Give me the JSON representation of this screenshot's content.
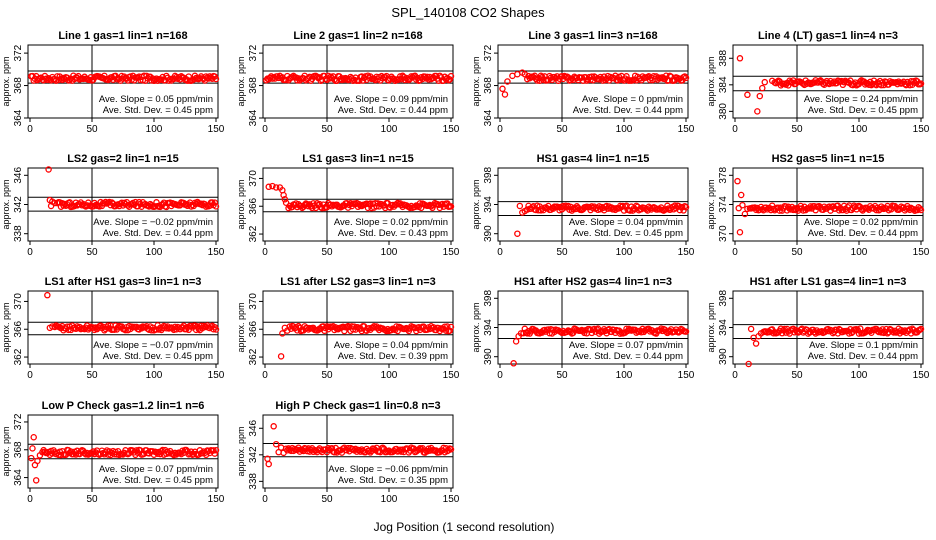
{
  "figure": {
    "title": "SPL_140108  CO2 Shapes",
    "xlabel": "Jog Position (1 second resolution)"
  },
  "colors": {
    "points": "#ff0000",
    "axes": "#000000"
  },
  "chart_data": [
    {
      "type": "scatter",
      "title": "Line 1 gas=1 lin=1 n=168",
      "ylabel": "approx. ppm",
      "xlim": [
        0,
        150
      ],
      "ylim": [
        364,
        373
      ],
      "yticks": [
        364,
        368,
        372
      ],
      "xticks": [
        0,
        50,
        100,
        150
      ],
      "hlines": [
        369.8,
        368.3
      ],
      "vline": 50,
      "baseline": 368.9,
      "slope": "Ave. Slope = 0.05 ppm/min",
      "stdev": "Ave. Std. Dev. = 0.45 ppm",
      "outliers": []
    },
    {
      "type": "scatter",
      "title": "Line 2 gas=1 lin=2 n=168",
      "ylabel": "approx. ppm",
      "xlim": [
        0,
        150
      ],
      "ylim": [
        364,
        373
      ],
      "yticks": [
        364,
        368,
        372
      ],
      "xticks": [
        0,
        50,
        100,
        150
      ],
      "hlines": [
        369.8,
        368.3
      ],
      "vline": 50,
      "baseline": 368.9,
      "slope": "Ave. Slope = 0.09 ppm/min",
      "stdev": "Ave. Std. Dev. = 0.44 ppm",
      "outliers": []
    },
    {
      "type": "scatter",
      "title": "Line 3 gas=1 lin=3 n=168",
      "ylabel": "approx. ppm",
      "xlim": [
        0,
        150
      ],
      "ylim": [
        364,
        373
      ],
      "yticks": [
        364,
        368,
        372
      ],
      "xticks": [
        0,
        50,
        100,
        150
      ],
      "hlines": [
        369.8,
        368.3
      ],
      "vline": 50,
      "baseline": 368.9,
      "slope": "Ave. Slope = 0  ppm/min",
      "stdev": "Ave. Std. Dev. = 0.44 ppm",
      "outliers": [
        [
          2,
          367.6
        ],
        [
          4,
          366.9
        ],
        [
          6,
          368.5
        ],
        [
          10,
          369.2
        ],
        [
          14,
          369.4
        ],
        [
          18,
          369.6
        ],
        [
          20,
          369.4
        ]
      ]
    },
    {
      "type": "scatter",
      "title": "Line 4 (LT) gas=1 lin=4 n=3",
      "ylabel": "approx. ppm",
      "xlim": [
        0,
        150
      ],
      "ylim": [
        379,
        390
      ],
      "yticks": [
        380,
        384,
        388
      ],
      "xticks": [
        0,
        50,
        100,
        150
      ],
      "hlines": [
        385.3,
        383.1
      ],
      "vline": 50,
      "baseline": 384.3,
      "slope": "Ave. Slope = 0.24 ppm/min",
      "stdev": "Ave. Std. Dev. = 0.45 ppm",
      "outliers": [
        [
          4,
          388
        ],
        [
          10,
          382.5
        ],
        [
          18,
          380
        ],
        [
          20,
          382.3
        ],
        [
          22,
          383.5
        ],
        [
          24,
          384.4
        ],
        [
          30,
          384.6
        ]
      ]
    },
    {
      "type": "scatter",
      "title": "LS2 gas=2 lin=1 n=15",
      "ylabel": "approx. ppm",
      "xlim": [
        0,
        150
      ],
      "ylim": [
        337,
        347
      ],
      "yticks": [
        338,
        342,
        346
      ],
      "xticks": [
        0,
        50,
        100,
        150
      ],
      "hlines": [
        343.0,
        341.1
      ],
      "vline": 50,
      "baseline": 342.0,
      "slope": "Ave. Slope = −0.02 ppm/min",
      "stdev": "Ave. Std. Dev. = 0.44 ppm",
      "outliers": [
        [
          15,
          346.8
        ],
        [
          16,
          342.6
        ],
        [
          17,
          341.8
        ],
        [
          18,
          342.4
        ],
        [
          20,
          342.2
        ]
      ]
    },
    {
      "type": "scatter",
      "title": "LS1 gas=3 lin=1 n=15",
      "ylabel": "approx. ppm",
      "xlim": [
        0,
        150
      ],
      "ylim": [
        361,
        371.5
      ],
      "yticks": [
        362,
        366,
        370
      ],
      "xticks": [
        0,
        50,
        100,
        150
      ],
      "hlines": [
        367.0,
        365.2
      ],
      "vline": 50,
      "baseline": 366.1,
      "slope": "Ave. Slope = 0.02 ppm/min",
      "stdev": "Ave. Std. Dev. = 0.43 ppm",
      "outliers": [
        [
          3,
          368.8
        ],
        [
          6,
          368.9
        ],
        [
          9,
          368.7
        ],
        [
          12,
          368.7
        ],
        [
          14,
          368.3
        ],
        [
          15,
          367.6
        ],
        [
          16,
          367.0
        ],
        [
          17,
          366.5
        ]
      ]
    },
    {
      "type": "scatter",
      "title": "HS1 gas=4 lin=1 n=15",
      "ylabel": "approx. ppm",
      "xlim": [
        0,
        150
      ],
      "ylim": [
        389,
        399
      ],
      "yticks": [
        390,
        394,
        398
      ],
      "xticks": [
        0,
        50,
        100,
        150
      ],
      "hlines": [
        394.4,
        392.5
      ],
      "vline": 50,
      "baseline": 393.5,
      "slope": "Ave. Slope = 0.04 ppm/min",
      "stdev": "Ave. Std. Dev. = 0.45 ppm",
      "outliers": [
        [
          14,
          390
        ],
        [
          16,
          393.8
        ],
        [
          18,
          392.9
        ],
        [
          20,
          393.1
        ]
      ]
    },
    {
      "type": "scatter",
      "title": "HS2 gas=5 lin=1 n=15",
      "ylabel": "approx. ppm",
      "xlim": [
        0,
        150
      ],
      "ylim": [
        369,
        379
      ],
      "yticks": [
        370,
        374,
        378
      ],
      "xticks": [
        0,
        50,
        100,
        150
      ],
      "hlines": [
        374.4,
        372.5
      ],
      "vline": 50,
      "baseline": 373.5,
      "slope": "Ave. Slope = 0.02 ppm/min",
      "stdev": "Ave. Std. Dev. = 0.44 ppm",
      "outliers": [
        [
          2,
          377.2
        ],
        [
          3,
          373.5
        ],
        [
          4,
          370.2
        ],
        [
          5,
          375.3
        ],
        [
          6,
          373.9
        ],
        [
          8,
          372.7
        ],
        [
          10,
          373.4
        ]
      ]
    },
    {
      "type": "scatter",
      "title": "LS1 after HS1 gas=3 lin=1 n=3",
      "ylabel": "approx. ppm",
      "xlim": [
        0,
        150
      ],
      "ylim": [
        361,
        371.5
      ],
      "yticks": [
        362,
        366,
        370
      ],
      "xticks": [
        0,
        50,
        100,
        150
      ],
      "hlines": [
        367.0,
        365.2
      ],
      "vline": 50,
      "baseline": 366.2,
      "slope": "Ave. Slope = −0.07 ppm/min",
      "stdev": "Ave. Std. Dev. = 0.45 ppm",
      "outliers": [
        [
          14,
          370.9
        ],
        [
          16,
          366.2
        ],
        [
          18,
          366.4
        ]
      ]
    },
    {
      "type": "scatter",
      "title": "LS1 after LS2 gas=3 lin=1 n=3",
      "ylabel": "approx. ppm",
      "xlim": [
        0,
        150
      ],
      "ylim": [
        361,
        371.5
      ],
      "yticks": [
        362,
        366,
        370
      ],
      "xticks": [
        0,
        50,
        100,
        150
      ],
      "hlines": [
        367.0,
        365.2
      ],
      "vline": 50,
      "baseline": 366.1,
      "slope": "Ave. Slope = 0.04 ppm/min",
      "stdev": "Ave. Std. Dev. = 0.39 ppm",
      "outliers": [
        [
          13,
          362.1
        ],
        [
          14,
          365.4
        ],
        [
          16,
          366.2
        ],
        [
          18,
          365.8
        ]
      ]
    },
    {
      "type": "scatter",
      "title": "HS1 after HS2 gas=4 lin=1 n=3",
      "ylabel": "approx. ppm",
      "xlim": [
        0,
        150
      ],
      "ylim": [
        389,
        399
      ],
      "yticks": [
        390,
        394,
        398
      ],
      "xticks": [
        0,
        50,
        100,
        150
      ],
      "hlines": [
        394.4,
        392.5
      ],
      "vline": 50,
      "baseline": 393.5,
      "slope": "Ave. Slope = 0.07 ppm/min",
      "stdev": "Ave. Std. Dev. = 0.44 ppm",
      "outliers": [
        [
          11,
          389.1
        ],
        [
          13,
          392.1
        ],
        [
          15,
          392.8
        ],
        [
          17,
          393.2
        ]
      ]
    },
    {
      "type": "scatter",
      "title": "HS1 after LS1 gas=4 lin=1 n=3",
      "ylabel": "approx. ppm",
      "xlim": [
        0,
        150
      ],
      "ylim": [
        389,
        399
      ],
      "yticks": [
        390,
        394,
        398
      ],
      "xticks": [
        0,
        50,
        100,
        150
      ],
      "hlines": [
        394.4,
        392.5
      ],
      "vline": 50,
      "baseline": 393.5,
      "slope": "Ave. Slope = 0.1  ppm/min",
      "stdev": "Ave. Std. Dev. = 0.44 ppm",
      "outliers": [
        [
          11,
          389.0
        ],
        [
          13,
          393.8
        ],
        [
          15,
          392.6
        ],
        [
          17,
          391.8
        ],
        [
          19,
          392.8
        ],
        [
          21,
          393.2
        ]
      ]
    },
    {
      "type": "scatter",
      "title": "Low P Check gas=1.2 lin=1 n=6",
      "ylabel": "approx. ppm",
      "xlim": [
        0,
        150
      ],
      "ylim": [
        362.5,
        373
      ],
      "yticks": [
        364,
        368,
        372
      ],
      "xticks": [
        0,
        50,
        100,
        150
      ],
      "hlines": [
        368.8,
        366.7
      ],
      "vline": 50,
      "baseline": 367.6,
      "slope": "Ave. Slope = 0.07 ppm/min",
      "stdev": "Ave. Std. Dev. = 0.45 ppm",
      "outliers": [
        [
          1,
          366.8
        ],
        [
          2,
          368.2
        ],
        [
          3,
          369.8
        ],
        [
          4,
          365.8
        ],
        [
          5,
          363.6
        ],
        [
          6,
          366.4
        ],
        [
          8,
          367.2
        ]
      ]
    },
    {
      "type": "scatter",
      "title": "High P Check gas=1 lin=0.8 n=3",
      "ylabel": "approx. ppm",
      "xlim": [
        0,
        150
      ],
      "ylim": [
        337,
        348
      ],
      "yticks": [
        338,
        342,
        346
      ],
      "xticks": [
        0,
        50,
        100,
        150
      ],
      "hlines": [
        343.7,
        341.7
      ],
      "vline": 50,
      "baseline": 342.7,
      "slope": "Ave. Slope = −0.06 ppm/min",
      "stdev": "Ave. Std. Dev. = 0.35 ppm",
      "outliers": [
        [
          2,
          341.4
        ],
        [
          3,
          340.6
        ],
        [
          7,
          346.3
        ],
        [
          9,
          343.6
        ],
        [
          11,
          342.4
        ],
        [
          13,
          343.1
        ],
        [
          15,
          342.3
        ]
      ]
    }
  ]
}
